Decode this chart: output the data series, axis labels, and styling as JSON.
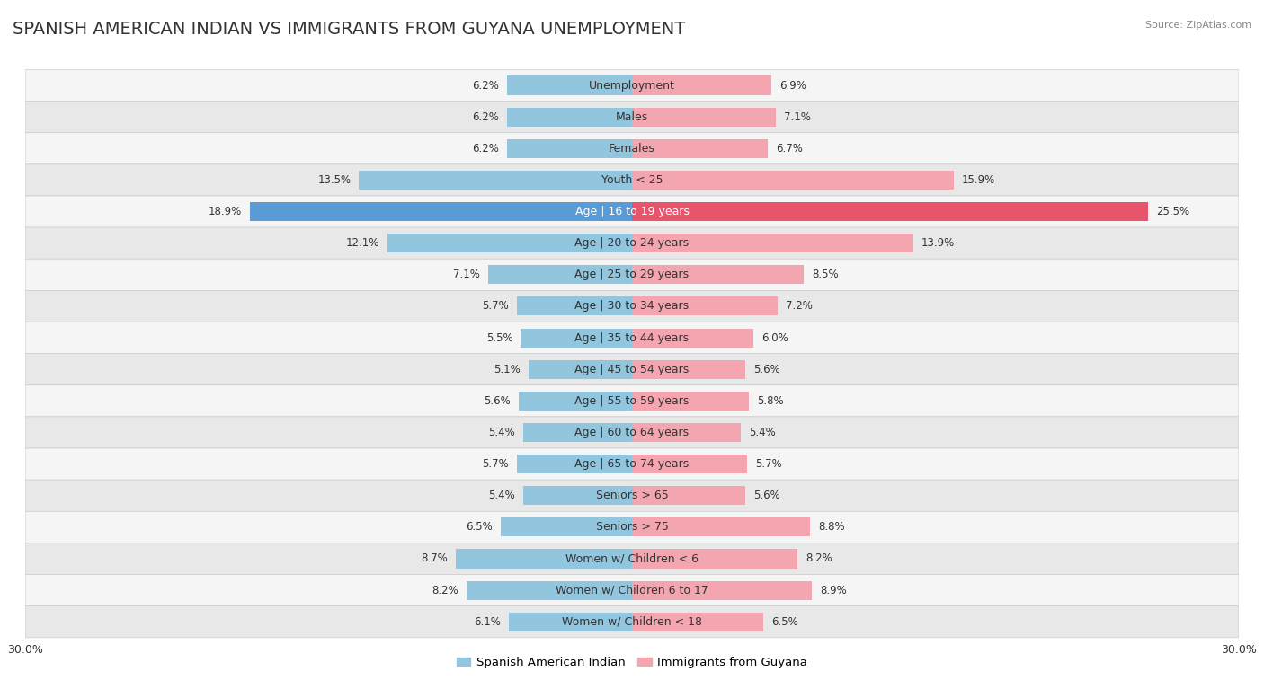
{
  "title": "SPANISH AMERICAN INDIAN VS IMMIGRANTS FROM GUYANA UNEMPLOYMENT",
  "source": "Source: ZipAtlas.com",
  "categories": [
    "Unemployment",
    "Males",
    "Females",
    "Youth < 25",
    "Age | 16 to 19 years",
    "Age | 20 to 24 years",
    "Age | 25 to 29 years",
    "Age | 30 to 34 years",
    "Age | 35 to 44 years",
    "Age | 45 to 54 years",
    "Age | 55 to 59 years",
    "Age | 60 to 64 years",
    "Age | 65 to 74 years",
    "Seniors > 65",
    "Seniors > 75",
    "Women w/ Children < 6",
    "Women w/ Children 6 to 17",
    "Women w/ Children < 18"
  ],
  "left_values": [
    6.2,
    6.2,
    6.2,
    13.5,
    18.9,
    12.1,
    7.1,
    5.7,
    5.5,
    5.1,
    5.6,
    5.4,
    5.7,
    5.4,
    6.5,
    8.7,
    8.2,
    6.1
  ],
  "right_values": [
    6.9,
    7.1,
    6.7,
    15.9,
    25.5,
    13.9,
    8.5,
    7.2,
    6.0,
    5.6,
    5.8,
    5.4,
    5.7,
    5.6,
    8.8,
    8.2,
    8.9,
    6.5
  ],
  "left_color": "#92C5DE",
  "right_color": "#F4A6B0",
  "highlight_left_color": "#5B9BD5",
  "highlight_right_color": "#E8546A",
  "highlight_rows": [
    4
  ],
  "background_color": "#ffffff",
  "row_bg_even": "#f5f5f5",
  "row_bg_odd": "#e8e8e8",
  "row_separator_color": "#cccccc",
  "max_val": 30.0,
  "legend_left": "Spanish American Indian",
  "legend_right": "Immigrants from Guyana",
  "title_fontsize": 14,
  "label_fontsize": 9,
  "value_fontsize": 8.5
}
